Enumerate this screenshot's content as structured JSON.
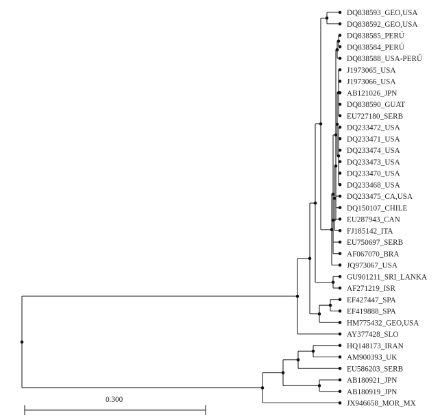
{
  "leaves": [
    "DQ838593_GEO,USA",
    "DQ838592_GEO,USA",
    "DQ838585_PERÚ",
    "DQ838584_PERÚ",
    "DQ838588_USA-PERÚ",
    "J1973065_USA",
    "J1973066_USA",
    "AB121026_JPN",
    "DQ838590_GUAT",
    "EU727180_SERB",
    "DQ233472_USA",
    "DQ233471_USA",
    "DQ233474_USA",
    "DQ233473_USA",
    "DQ233470_USA",
    "DQ233468_USA",
    "DQ233475_CA,USA",
    "DQ150107_CHILE",
    "EU287943_CAN",
    "FJ185142_ITA",
    "EU750697_SERB",
    "AF067070_BRA",
    "JQ973067_USA",
    "GU901211_SRI_LANKA",
    "AF271219_ISR",
    "EF427447_SPA",
    "EF419888_SPA",
    "HM775432_GEO,USA",
    "AY377428_SLO",
    "HQ148173_IRAN",
    "AM900393_UK",
    "EU586203_SERB",
    "AB180921_JPN",
    "AB180919_JPN",
    "JX946658_MOR_MX"
  ],
  "scale_bar": {
    "label": "0.300",
    "value": 0.3
  },
  "colors": {
    "line": "#222222",
    "node": "#111111",
    "text": "#222222"
  }
}
